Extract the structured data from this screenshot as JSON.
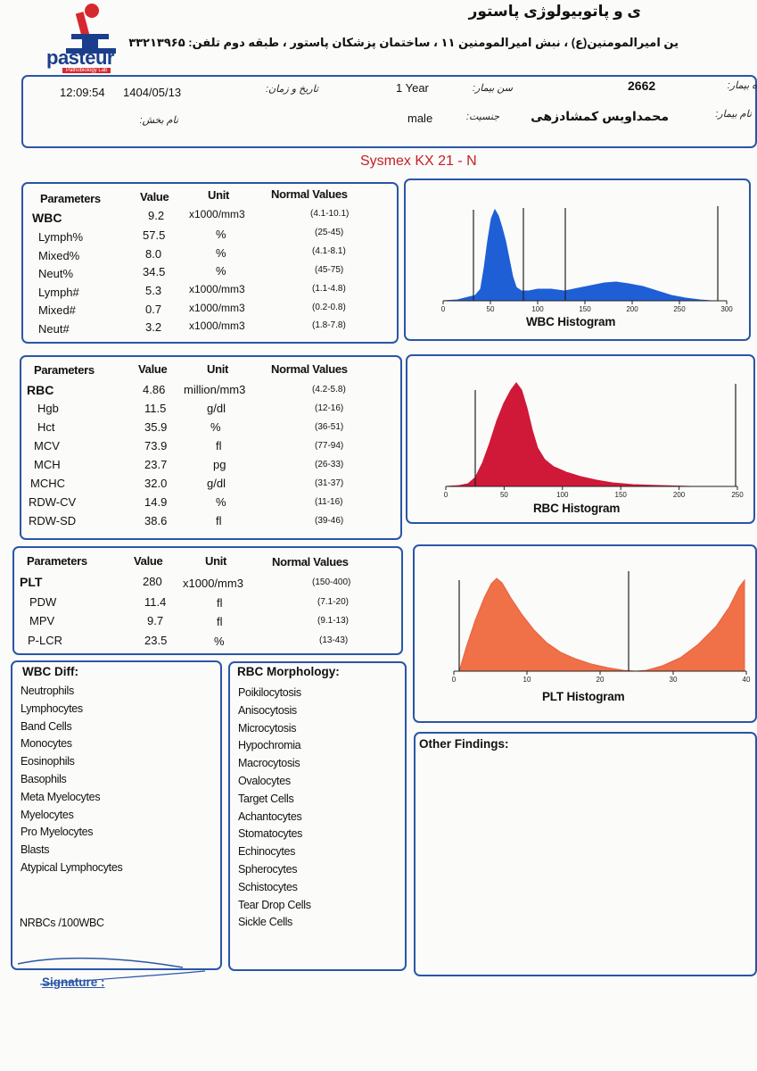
{
  "lab": {
    "logo_text": "pasteur",
    "logo_sub": "Pathobiology Lab",
    "name_fa": "ی و پاتوبیولوژی پاستور",
    "address_fa": "ین امیرالمومنین(ع) ، نبش امیرالمومنین ۱۱ ، ساختمان پزشکان پاستور ، طبقه دوم  تلفن: ۳۳۲۱۳۹۶۵"
  },
  "patient": {
    "id_label": "ه بیمار:",
    "id_value": "2662",
    "age_label": "سن بیمار:",
    "age_value": "1 Year",
    "datetime_label": "تاریخ و زمان:",
    "time_value": "12:09:54",
    "date_value": "1404/05/13",
    "name_label": "نام بیمار:",
    "name_value": "محمداویس کمشادزهی",
    "sex_label": "جنسیت:",
    "sex_value": "male",
    "ward_label": "نام بخش:"
  },
  "analyzer": "Sysmex KX 21 - N",
  "wbc_table": {
    "headers": [
      "Parameters",
      "Value",
      "Unit",
      "Normal Values"
    ],
    "rows": [
      {
        "name": "WBC",
        "value": "9.2",
        "unit": "x1000/mm3",
        "normal": "(4.1-10.1)"
      },
      {
        "name": "Lymph%",
        "value": "57.5",
        "unit": "%",
        "normal": "(25-45)"
      },
      {
        "name": "Mixed%",
        "value": "8.0",
        "unit": "%",
        "normal": "(4.1-8.1)"
      },
      {
        "name": "Neut%",
        "value": "34.5",
        "unit": "%",
        "normal": "(45-75)"
      },
      {
        "name": "Lymph#",
        "value": "5.3",
        "unit": "x1000/mm3",
        "normal": "(1.1-4.8)"
      },
      {
        "name": "Mixed#",
        "value": "0.7",
        "unit": "x1000/mm3",
        "normal": "(0.2-0.8)"
      },
      {
        "name": "Neut#",
        "value": "3.2",
        "unit": "x1000/mm3",
        "normal": "(1.8-7.8)"
      }
    ]
  },
  "rbc_table": {
    "headers": [
      "Parameters",
      "Value",
      "Unit",
      "Normal Values"
    ],
    "rows": [
      {
        "name": "RBC",
        "value": "4.86",
        "unit": "million/mm3",
        "normal": "(4.2-5.8)"
      },
      {
        "name": "Hgb",
        "value": "11.5",
        "unit": "g/dl",
        "normal": "(12-16)"
      },
      {
        "name": "Hct",
        "value": "35.9",
        "unit": "%",
        "normal": "(36-51)"
      },
      {
        "name": "MCV",
        "value": "73.9",
        "unit": "fl",
        "normal": "(77-94)"
      },
      {
        "name": "MCH",
        "value": "23.7",
        "unit": "pg",
        "normal": "(26-33)"
      },
      {
        "name": "MCHC",
        "value": "32.0",
        "unit": "g/dl",
        "normal": "(31-37)"
      },
      {
        "name": "RDW-CV",
        "value": "14.9",
        "unit": "%",
        "normal": "(11-16)"
      },
      {
        "name": "RDW-SD",
        "value": "38.6",
        "unit": "fl",
        "normal": "(39-46)"
      }
    ]
  },
  "plt_table": {
    "headers": [
      "Parameters",
      "Value",
      "Unit",
      "Normal Values"
    ],
    "rows": [
      {
        "name": "PLT",
        "value": "280",
        "unit": "x1000/mm3",
        "normal": "(150-400)"
      },
      {
        "name": "PDW",
        "value": "11.4",
        "unit": "fl",
        "normal": "(7.1-20)"
      },
      {
        "name": "MPV",
        "value": "9.7",
        "unit": "fl",
        "normal": "(9.1-13)"
      },
      {
        "name": "P-LCR",
        "value": "23.5",
        "unit": "%",
        "normal": "(13-43)"
      }
    ]
  },
  "wbc_histogram": {
    "title": "WBC Histogram",
    "ticks": [
      "0",
      "50",
      "100",
      "150",
      "200",
      "250",
      "300"
    ],
    "color": "#1f5fd6"
  },
  "rbc_histogram": {
    "title": "RBC Histogram",
    "ticks": [
      "0",
      "50",
      "100",
      "150",
      "200",
      "250"
    ],
    "color": "#d01838"
  },
  "plt_histogram": {
    "title": "PLT Histogram",
    "ticks": [
      "0",
      "10",
      "20",
      "30",
      "40"
    ],
    "color": "#f07048"
  },
  "wbc_diff": {
    "title": "WBC Diff:",
    "items": [
      "Neutrophils",
      "Lymphocytes",
      "Band Cells",
      "Monocytes",
      "Eosinophils",
      "Basophils",
      "Meta Myelocytes",
      "Myelocytes",
      "Pro Myelocytes",
      "Blasts",
      "Atypical Lymphocytes"
    ],
    "nrbc": "NRBCs /100WBC"
  },
  "rbc_morphology": {
    "title": "RBC Morphology:",
    "items": [
      "Poikilocytosis",
      "Anisocytosis",
      "Microcytosis",
      "Hypochromia",
      "Macrocytosis",
      "Ovalocytes",
      "Target Cells",
      "Achantocytes",
      "Stomatocytes",
      "Echinocytes",
      "Spherocytes",
      "Schistocytes",
      "Tear Drop Cells",
      "Sickle Cells"
    ]
  },
  "other_findings": "Other Findings:",
  "signature": "Signature :"
}
